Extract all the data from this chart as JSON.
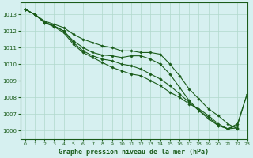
{
  "title": "Graphe pression niveau de la mer (hPa)",
  "bg_color": "#d6f0f0",
  "grid_color": "#b0d8cc",
  "line_color": "#1a5c1a",
  "marker": "D",
  "markersize": 1.8,
  "linewidth": 0.8,
  "xlim": [
    -0.5,
    23
  ],
  "ylim": [
    1005.5,
    1013.7
  ],
  "yticks": [
    1006,
    1007,
    1008,
    1009,
    1010,
    1011,
    1012,
    1013
  ],
  "xticks": [
    0,
    1,
    2,
    3,
    4,
    5,
    6,
    7,
    8,
    9,
    10,
    11,
    12,
    13,
    14,
    15,
    16,
    17,
    18,
    19,
    20,
    21,
    22,
    23
  ],
  "series": [
    [
      1013.3,
      1013.0,
      1012.6,
      1012.4,
      1012.2,
      1011.8,
      1011.5,
      1011.3,
      1011.1,
      1011.0,
      1010.8,
      1010.8,
      1010.7,
      1010.7,
      1010.6,
      1010.0,
      1009.3,
      1008.5,
      1007.9,
      1007.3,
      1006.9,
      1006.4,
      1006.1,
      null
    ],
    [
      1013.3,
      1013.0,
      1012.55,
      1012.3,
      1012.0,
      1011.4,
      1011.0,
      1010.7,
      1010.55,
      1010.5,
      1010.4,
      1010.5,
      1010.5,
      1010.3,
      1010.0,
      1009.4,
      1008.6,
      1007.8,
      1007.2,
      1006.7,
      1006.3,
      1006.1,
      1006.15,
      null
    ],
    [
      1013.3,
      1013.0,
      1012.5,
      1012.25,
      1011.9,
      1011.2,
      1010.7,
      1010.4,
      1010.1,
      1009.8,
      1009.6,
      1009.4,
      1009.3,
      1009.0,
      1008.7,
      1008.3,
      1008.0,
      1007.6,
      1007.3,
      1006.9,
      1006.4,
      1006.1,
      1006.3,
      1008.2
    ],
    [
      1013.3,
      1013.0,
      1012.5,
      1012.3,
      1012.0,
      1011.3,
      1010.8,
      1010.5,
      1010.3,
      1010.2,
      1010.0,
      1009.9,
      1009.7,
      1009.4,
      1009.1,
      1008.7,
      1008.2,
      1007.7,
      1007.2,
      1006.8,
      1006.3,
      1006.1,
      1006.4,
      1008.2
    ]
  ]
}
